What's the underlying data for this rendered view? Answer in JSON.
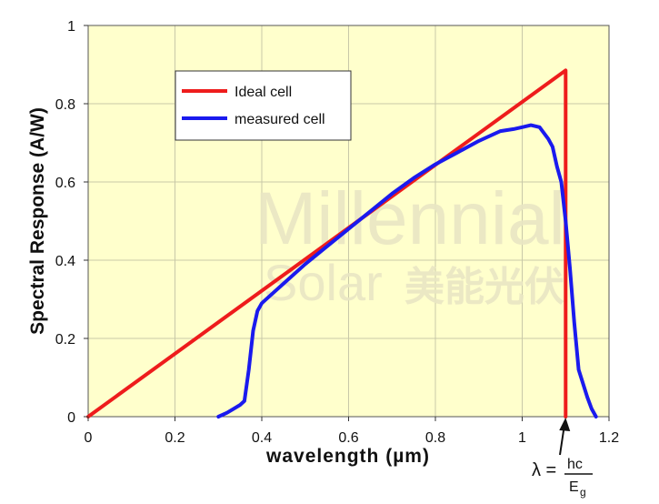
{
  "chart_data": {
    "type": "line",
    "xlabel": "wavelength (µm)",
    "ylabel": "Spectral Response (A/W)",
    "xlim": [
      0,
      1.2
    ],
    "ylim": [
      0,
      1
    ],
    "x_ticks": [
      "0",
      "0.2",
      "0.4",
      "0.6",
      "0.8",
      "1",
      "1.2"
    ],
    "y_ticks": [
      "0",
      "0.2",
      "0.4",
      "0.6",
      "0.8",
      "1"
    ],
    "grid": true,
    "legend_position": "top-left",
    "background_color": "#ffffcc",
    "series": [
      {
        "name": "Ideal cell",
        "color": "#ee1c1c",
        "points": [
          [
            0,
            0
          ],
          [
            1.1,
            0.885
          ],
          [
            1.1,
            0
          ]
        ]
      },
      {
        "name": "measured cell",
        "color": "#1a1aee",
        "points": [
          [
            0.3,
            0
          ],
          [
            0.32,
            0.01
          ],
          [
            0.35,
            0.03
          ],
          [
            0.36,
            0.04
          ],
          [
            0.37,
            0.12
          ],
          [
            0.38,
            0.22
          ],
          [
            0.39,
            0.27
          ],
          [
            0.4,
            0.29
          ],
          [
            0.42,
            0.31
          ],
          [
            0.45,
            0.34
          ],
          [
            0.5,
            0.39
          ],
          [
            0.55,
            0.435
          ],
          [
            0.6,
            0.48
          ],
          [
            0.65,
            0.525
          ],
          [
            0.7,
            0.57
          ],
          [
            0.75,
            0.61
          ],
          [
            0.8,
            0.645
          ],
          [
            0.85,
            0.675
          ],
          [
            0.9,
            0.705
          ],
          [
            0.95,
            0.73
          ],
          [
            0.98,
            0.735
          ],
          [
            1.0,
            0.74
          ],
          [
            1.02,
            0.745
          ],
          [
            1.04,
            0.74
          ],
          [
            1.06,
            0.71
          ],
          [
            1.07,
            0.69
          ],
          [
            1.08,
            0.64
          ],
          [
            1.09,
            0.6
          ],
          [
            1.1,
            0.5
          ],
          [
            1.11,
            0.38
          ],
          [
            1.12,
            0.24
          ],
          [
            1.13,
            0.12
          ],
          [
            1.15,
            0.05
          ],
          [
            1.16,
            0.02
          ],
          [
            1.17,
            0
          ]
        ]
      }
    ],
    "annotations": [
      {
        "lhs": "λ =",
        "numerator": "hc",
        "denominator": "E",
        "subscript": "g",
        "x": 1.1,
        "arrow_to_x": 1.1
      }
    ]
  },
  "watermark": {
    "line1": "Millennial",
    "line2": "Solar",
    "cjk": "美能光伏"
  }
}
